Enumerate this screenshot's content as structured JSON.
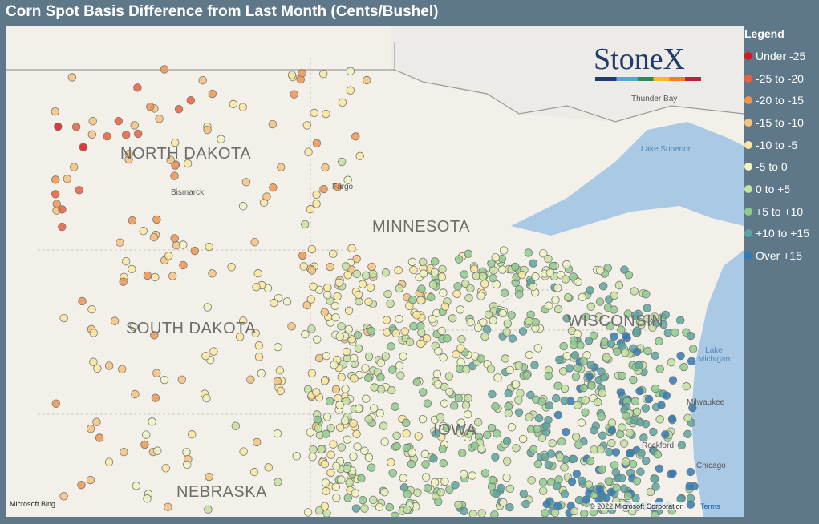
{
  "title": "Corn Spot Basis Difference from Last Month (Cents/Bushel)",
  "legend": {
    "title": "Legend",
    "items": [
      {
        "label": "Under -25",
        "color": "#d7191c"
      },
      {
        "label": "-25 to -20",
        "color": "#e8603c"
      },
      {
        "label": "-20 to -15",
        "color": "#f0954d"
      },
      {
        "label": "-15 to -10",
        "color": "#f7c27b"
      },
      {
        "label": "-10 to -5",
        "color": "#fbe79e"
      },
      {
        "label": "-5 to 0",
        "color": "#f0f5c2"
      },
      {
        "label": "0 to +5",
        "color": "#c4e2a0"
      },
      {
        "label": "+5 to +10",
        "color": "#8fcb8d"
      },
      {
        "label": "+10 to +15",
        "color": "#5aa6a0"
      },
      {
        "label": "Over +15",
        "color": "#2c7bb6"
      }
    ]
  },
  "logo": "StoneX",
  "map": {
    "states": [
      "NORTH DAKOTA",
      "MINNESOTA",
      "SOUTH DAKOTA",
      "WISCONSIN",
      "IOWA",
      "NEBRASKA"
    ],
    "places": [
      "Thunder Bay",
      "Lake Superior",
      "Bismarck",
      "Fargo",
      "Lake Michigan",
      "Milwaukee",
      "Chicago",
      "Rockford"
    ]
  },
  "attribution": {
    "provider": "Microsoft Bing",
    "copyright": "© 2022 Microsoft Corporation",
    "terms": "Terms"
  }
}
